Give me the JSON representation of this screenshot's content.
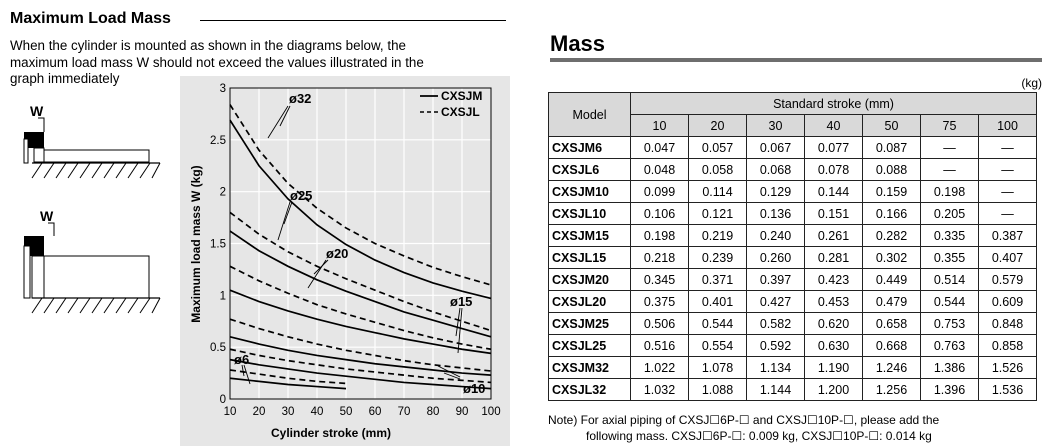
{
  "load_section": {
    "heading": "Maximum Load Mass",
    "intro_lines": [
      "When the cylinder is mounted as shown in the diagrams below, the",
      "maximum load mass W should not exceed the values illustrated in the",
      "graph immediately"
    ],
    "diagram_labels": [
      "W",
      "W"
    ]
  },
  "chart_data": {
    "type": "line",
    "title": "",
    "xlabel": "Cylinder stroke (mm)",
    "ylabel": "Maximum load mass W (kg)",
    "xlim": [
      10,
      100
    ],
    "ylim": [
      0,
      3
    ],
    "xticks": [
      10,
      20,
      30,
      40,
      50,
      60,
      70,
      80,
      90,
      100
    ],
    "yticks": [
      0,
      0.5,
      1,
      1.5,
      2,
      2.5,
      3
    ],
    "ytick_labels": [
      "0",
      "0.5",
      "1",
      "1.5",
      "2",
      "2.5",
      "3"
    ],
    "grid": true,
    "legend": [
      {
        "name": "CXSJM",
        "style": "solid"
      },
      {
        "name": "CXSJL",
        "style": "dashed"
      }
    ],
    "legend_position": "top-right",
    "series": [
      {
        "group": "ø32",
        "model": "CXSJM",
        "style": "solid",
        "x": [
          10,
          20,
          30,
          40,
          50,
          60,
          70,
          80,
          90,
          100
        ],
        "y": [
          2.69,
          2.25,
          1.93,
          1.68,
          1.49,
          1.34,
          1.22,
          1.12,
          1.04,
          0.97
        ]
      },
      {
        "group": "ø32",
        "model": "CXSJL",
        "style": "dashed",
        "x": [
          10,
          20,
          30,
          40,
          50,
          60,
          70,
          80,
          90,
          100
        ],
        "y": [
          2.84,
          2.4,
          2.08,
          1.84,
          1.65,
          1.5,
          1.38,
          1.27,
          1.18,
          1.1
        ]
      },
      {
        "group": "ø25",
        "model": "CXSJM",
        "style": "solid",
        "x": [
          10,
          20,
          30,
          40,
          50,
          60,
          70,
          80,
          90,
          100
        ],
        "y": [
          1.62,
          1.43,
          1.28,
          1.15,
          1.04,
          0.94,
          0.84,
          0.76,
          0.68,
          0.6
        ]
      },
      {
        "group": "ø25",
        "model": "CXSJL",
        "style": "dashed",
        "x": [
          10,
          20,
          30,
          40,
          50,
          60,
          70,
          80,
          90,
          100
        ],
        "y": [
          1.8,
          1.59,
          1.42,
          1.28,
          1.16,
          1.05,
          0.94,
          0.84,
          0.75,
          0.66
        ]
      },
      {
        "group": "ø20",
        "model": "CXSJM",
        "style": "solid",
        "x": [
          10,
          20,
          30,
          40,
          50,
          60,
          70,
          80,
          90,
          100
        ],
        "y": [
          1.05,
          0.94,
          0.85,
          0.77,
          0.7,
          0.64,
          0.58,
          0.53,
          0.48,
          0.44
        ]
      },
      {
        "group": "ø20",
        "model": "CXSJL",
        "style": "dashed",
        "x": [
          10,
          20,
          30,
          40,
          50,
          60,
          70,
          80,
          90,
          100
        ],
        "y": [
          1.28,
          1.14,
          1.02,
          0.91,
          0.82,
          0.74,
          0.66,
          0.59,
          0.53,
          0.48
        ]
      },
      {
        "group": "ø15",
        "model": "CXSJM",
        "style": "solid",
        "x": [
          10,
          20,
          30,
          40,
          50,
          60,
          70,
          80,
          90,
          100
        ],
        "y": [
          0.6,
          0.53,
          0.47,
          0.42,
          0.38,
          0.34,
          0.31,
          0.28,
          0.25,
          0.23
        ]
      },
      {
        "group": "ø15",
        "model": "CXSJL",
        "style": "dashed",
        "x": [
          10,
          20,
          30,
          40,
          50,
          60,
          70,
          80,
          90,
          100
        ],
        "y": [
          0.77,
          0.68,
          0.6,
          0.53,
          0.47,
          0.42,
          0.37,
          0.33,
          0.3,
          0.27
        ]
      },
      {
        "group": "ø10",
        "model": "CXSJM",
        "style": "solid",
        "x": [
          10,
          20,
          30,
          40,
          50,
          60,
          70,
          80,
          90,
          100
        ],
        "y": [
          0.38,
          0.33,
          0.29,
          0.25,
          0.22,
          0.19,
          0.16,
          0.14,
          0.12,
          0.1
        ]
      },
      {
        "group": "ø10",
        "model": "CXSJL",
        "style": "dashed",
        "x": [
          10,
          20,
          30,
          40,
          50,
          60,
          70,
          80,
          90,
          100
        ],
        "y": [
          0.48,
          0.42,
          0.37,
          0.33,
          0.29,
          0.26,
          0.23,
          0.2,
          0.18,
          0.16
        ]
      },
      {
        "group": "ø6",
        "model": "CXSJM",
        "style": "solid",
        "x": [
          10,
          20,
          30,
          40,
          50
        ],
        "y": [
          0.2,
          0.17,
          0.14,
          0.12,
          0.1
        ]
      },
      {
        "group": "ø6",
        "model": "CXSJL",
        "style": "dashed",
        "x": [
          10,
          20,
          30,
          40,
          50
        ],
        "y": [
          0.28,
          0.24,
          0.2,
          0.17,
          0.15
        ]
      }
    ],
    "annotations": [
      "ø32",
      "ø25",
      "ø20",
      "ø15",
      "ø10",
      "ø6"
    ]
  },
  "mass_section": {
    "heading": "Mass",
    "unit": "(kg)",
    "model_header": "Model",
    "stroke_header": "Standard stroke (mm)",
    "strokes": [
      "10",
      "20",
      "30",
      "40",
      "50",
      "75",
      "100"
    ],
    "rows": [
      {
        "model": "CXSJM6",
        "values": [
          "0.047",
          "0.057",
          "0.067",
          "0.077",
          "0.087",
          "—",
          "—"
        ]
      },
      {
        "model": "CXSJL6",
        "values": [
          "0.048",
          "0.058",
          "0.068",
          "0.078",
          "0.088",
          "—",
          "—"
        ]
      },
      {
        "model": "CXSJM10",
        "values": [
          "0.099",
          "0.114",
          "0.129",
          "0.144",
          "0.159",
          "0.198",
          "—"
        ]
      },
      {
        "model": "CXSJL10",
        "values": [
          "0.106",
          "0.121",
          "0.136",
          "0.151",
          "0.166",
          "0.205",
          "—"
        ]
      },
      {
        "model": "CXSJM15",
        "values": [
          "0.198",
          "0.219",
          "0.240",
          "0.261",
          "0.282",
          "0.335",
          "0.387"
        ]
      },
      {
        "model": "CXSJL15",
        "values": [
          "0.218",
          "0.239",
          "0.260",
          "0.281",
          "0.302",
          "0.355",
          "0.407"
        ]
      },
      {
        "model": "CXSJM20",
        "values": [
          "0.345",
          "0.371",
          "0.397",
          "0.423",
          "0.449",
          "0.514",
          "0.579"
        ]
      },
      {
        "model": "CXSJL20",
        "values": [
          "0.375",
          "0.401",
          "0.427",
          "0.453",
          "0.479",
          "0.544",
          "0.609"
        ]
      },
      {
        "model": "CXSJM25",
        "values": [
          "0.506",
          "0.544",
          "0.582",
          "0.620",
          "0.658",
          "0.753",
          "0.848"
        ]
      },
      {
        "model": "CXSJL25",
        "values": [
          "0.516",
          "0.554",
          "0.592",
          "0.630",
          "0.668",
          "0.763",
          "0.858"
        ]
      },
      {
        "model": "CXSJM32",
        "values": [
          "1.022",
          "1.078",
          "1.134",
          "1.190",
          "1.246",
          "1.386",
          "1.526"
        ]
      },
      {
        "model": "CXSJL32",
        "values": [
          "1.032",
          "1.088",
          "1.144",
          "1.200",
          "1.256",
          "1.396",
          "1.536"
        ]
      }
    ],
    "note_lines": [
      "Note) For axial piping of CXSJ☐6P-☐ and CXSJ☐10P-☐, please add the",
      "following mass.  CXSJ☐6P-☐: 0.009 kg, CXSJ☐10P-☐: 0.014 kg"
    ]
  }
}
